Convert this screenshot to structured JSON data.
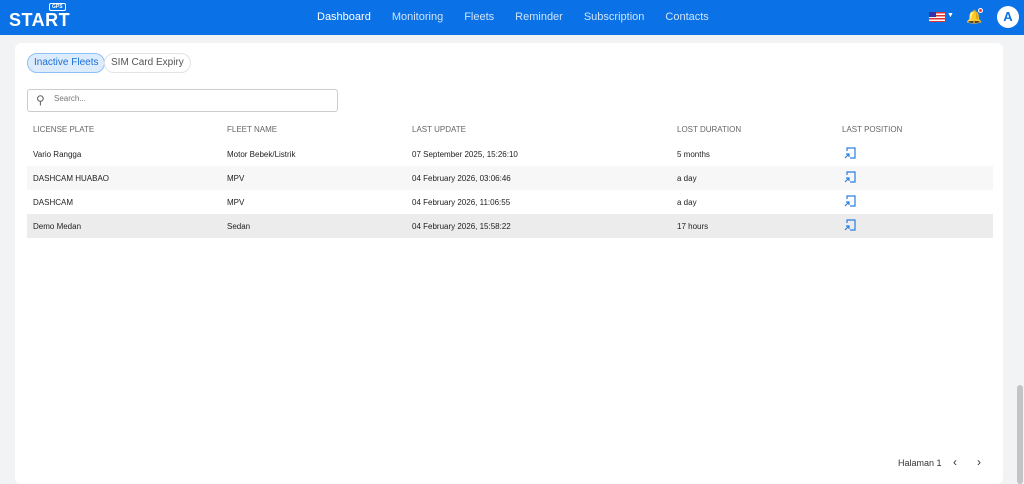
{
  "nav": {
    "logo": "START",
    "logo_badge": "GPS",
    "items": [
      "Dashboard",
      "Monitoring",
      "Fleets",
      "Reminder",
      "Subscription",
      "Contacts"
    ],
    "active": "Dashboard",
    "avatar": "A"
  },
  "tabs": [
    "Inactive Fleets",
    "SIM Card Expiry"
  ],
  "search": {
    "placeholder": "Search...",
    "value": ""
  },
  "table": {
    "headers": [
      "LICENSE PLATE",
      "FLEET NAME",
      "LAST UPDATE",
      "LOST DURATION",
      "LAST POSITION"
    ],
    "rows": [
      [
        "Vario Rangga",
        "Motor Bebek/Listrik",
        "07 September 2025, 15:26:10",
        "5 months"
      ],
      [
        "DASHCAM HUABAO",
        "MPV",
        "04 February 2026, 03:06:46",
        "a day"
      ],
      [
        "DASHCAM",
        "MPV",
        "04 February 2026, 11:06:55",
        "a day"
      ],
      [
        "Demo Medan",
        "Sedan",
        "04 February 2026, 15:58:22",
        "17 hours"
      ]
    ]
  },
  "pagination": {
    "label": "Halaman 1"
  },
  "colors": {
    "brand": "#0a72e6",
    "bell": "#f5a623"
  }
}
